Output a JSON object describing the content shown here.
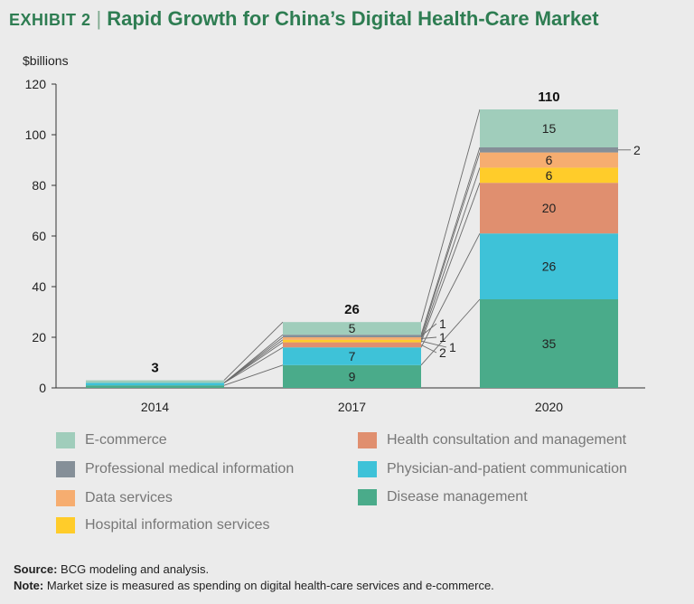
{
  "title": {
    "exhibit": "EXHIBIT 2",
    "separator": "|",
    "text": "Rapid Growth for China’s Digital Health-Care Market"
  },
  "chart_data": {
    "type": "bar",
    "stacked": true,
    "unit_label": "$billions",
    "ylim": [
      0,
      120
    ],
    "yticks": [
      0,
      20,
      40,
      60,
      80,
      100,
      120
    ],
    "categories": [
      "2014",
      "2017",
      "2020"
    ],
    "totals": [
      "3",
      "26",
      "110"
    ],
    "series": [
      {
        "name": "Disease management",
        "color": "#4aab8a",
        "values": [
          1,
          9,
          35
        ],
        "labels": [
          "",
          "9",
          "35"
        ]
      },
      {
        "name": "Physician-and-patient communication",
        "color": "#3ec2d8",
        "values": [
          1,
          7,
          26
        ],
        "labels": [
          "",
          "7",
          "26"
        ]
      },
      {
        "name": "Health consultation and management",
        "color": "#e08f6f",
        "values": [
          0,
          2,
          20
        ],
        "labels": [
          "",
          "2",
          "20"
        ]
      },
      {
        "name": "Hospital information services",
        "color": "#ffcc2a",
        "values": [
          0,
          1,
          6
        ],
        "labels": [
          "",
          "1",
          "6"
        ]
      },
      {
        "name": "Data services",
        "color": "#f6ad70",
        "values": [
          0,
          1,
          6
        ],
        "labels": [
          "",
          "1",
          "6"
        ]
      },
      {
        "name": "Professional medical information",
        "color": "#858f98",
        "values": [
          0,
          1,
          2
        ],
        "labels": [
          "",
          "1",
          "2"
        ]
      },
      {
        "name": "E-commerce",
        "color": "#a0cdbb",
        "values": [
          1,
          5,
          15
        ],
        "labels": [
          "",
          "5",
          "15"
        ]
      }
    ]
  },
  "legend": [
    {
      "label": "E-commerce",
      "color": "#a0cdbb"
    },
    {
      "label": "Professional medical information",
      "color": "#858f98"
    },
    {
      "label": "Data services",
      "color": "#f6ad70"
    },
    {
      "label": "Hospital information services",
      "color": "#ffcc2a"
    },
    {
      "label": "Health consultation and management",
      "color": "#e08f6f"
    },
    {
      "label": "Physician-and-patient communication",
      "color": "#3ec2d8"
    },
    {
      "label": "Disease management",
      "color": "#4aab8a"
    }
  ],
  "notes": {
    "source_label": "Source:",
    "source_text": "BCG modeling and analysis.",
    "note_label": "Note:",
    "note_text": "Market size is measured as spending on digital health-care services and e-commerce."
  }
}
